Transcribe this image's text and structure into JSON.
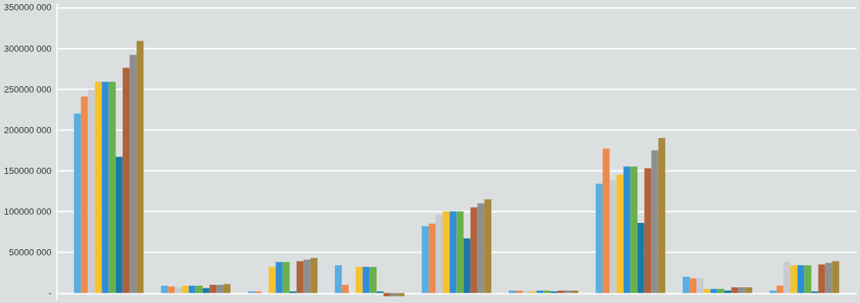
{
  "chart_data": {
    "type": "bar",
    "categories": [
      null,
      null,
      null,
      null,
      null,
      null,
      null,
      null,
      null
    ],
    "series": [
      {
        "color": "#5aaee0",
        "values": [
          220000000,
          9000000,
          2000000,
          34000000,
          82000000,
          3000000,
          134000000,
          20000000,
          3000000
        ]
      },
      {
        "color": "#ed8b4e",
        "values": [
          241000000,
          8000000,
          2000000,
          10000000,
          85000000,
          3000000,
          177000000,
          18000000,
          9000000
        ]
      },
      {
        "color": "#c8cccf",
        "values": [
          249000000,
          7000000,
          null,
          null,
          96000000,
          2000000,
          138000000,
          18000000,
          38000000
        ]
      },
      {
        "color": "#f5c230",
        "values": [
          259000000,
          9000000,
          32000000,
          32000000,
          100000000,
          2000000,
          145000000,
          5000000,
          34000000
        ]
      },
      {
        "color": "#2f8fd6",
        "values": [
          259000000,
          9000000,
          38000000,
          32000000,
          100000000,
          3000000,
          155000000,
          5000000,
          34000000
        ]
      },
      {
        "color": "#6ab04c",
        "values": [
          259000000,
          9000000,
          38000000,
          32000000,
          100000000,
          3000000,
          155000000,
          5000000,
          34000000
        ]
      },
      {
        "color": "#1a7aa6",
        "values": [
          167000000,
          6000000,
          2000000,
          2000000,
          67000000,
          2000000,
          86000000,
          3000000,
          2000000
        ]
      },
      {
        "color": "#b0623a",
        "values": [
          276000000,
          10000000,
          39000000,
          -4000000,
          105000000,
          3000000,
          153000000,
          7000000,
          35000000
        ]
      },
      {
        "color": "#8f8f8f",
        "values": [
          292000000,
          10000000,
          41000000,
          -4000000,
          110000000,
          3000000,
          175000000,
          7000000,
          37000000
        ]
      },
      {
        "color": "#a8893a",
        "values": [
          309000000,
          11000000,
          43000000,
          -4000000,
          115000000,
          3000000,
          190000000,
          7000000,
          39000000
        ]
      }
    ],
    "ylim": [
      -8000000,
      355000000
    ],
    "yticks": [
      {
        "value": 0,
        "label": "-"
      },
      {
        "value": 50000000,
        "label": "50000 000"
      },
      {
        "value": 100000000,
        "label": "100000 000"
      },
      {
        "value": 150000000,
        "label": "150000 000"
      },
      {
        "value": 200000000,
        "label": "200000 000"
      },
      {
        "value": 250000000,
        "label": "250000 000"
      },
      {
        "value": 300000000,
        "label": "300000 000"
      },
      {
        "value": 350000000,
        "label": "350000 000"
      }
    ],
    "grid": "y",
    "legend": false,
    "tick_labels": "y"
  }
}
